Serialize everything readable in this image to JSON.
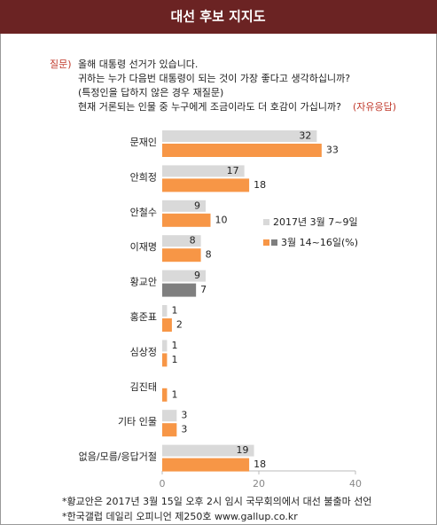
{
  "header": {
    "title": "대선 후보 지지도"
  },
  "question": {
    "label": "질문)",
    "lines": [
      "올해 대통령 선거가 있습니다.",
      "귀하는 누가 다음번 대통령이 되는 것이 가장 좋다고 생각하십니까?",
      "(특정인을 답하지 않은 경우 재질문)",
      "현재 거론되는 인물 중 누구에게 조금이라도 더 호감이 가십니까?"
    ],
    "note": "(자유응답)"
  },
  "chart_data": {
    "type": "hbar",
    "categories": [
      "문재인",
      "안희정",
      "안철수",
      "이재명",
      "황교안",
      "홍준표",
      "심상정",
      "김진태",
      "기타 인물",
      "없음/모름/응답거절"
    ],
    "series": [
      {
        "name": "2017년 3월 7~9일",
        "color": "#d9d9d9",
        "values": [
          32,
          17,
          9,
          8,
          9,
          1,
          1,
          null,
          3,
          19
        ]
      },
      {
        "name": "3월 14~16일(%)",
        "color": "#f79646",
        "colors": [
          "#f79646",
          "#f79646",
          "#f79646",
          "#f79646",
          "#7f7f7f",
          "#f79646",
          "#f79646",
          "#f79646",
          "#f79646",
          "#f79646"
        ],
        "values": [
          33,
          18,
          10,
          8,
          7,
          2,
          1,
          1,
          3,
          18
        ]
      }
    ],
    "xlim": [
      0,
      40
    ],
    "xticks": [
      0,
      20,
      40
    ],
    "grid": false
  },
  "footnotes": [
    "*황교안은 2017년 3월 15일 오후 2시 임시 국무회의에서 대선 불출마 선언",
    "*한국갤럽 데일리 오피니언 제250호 www.gallup.co.kr"
  ]
}
